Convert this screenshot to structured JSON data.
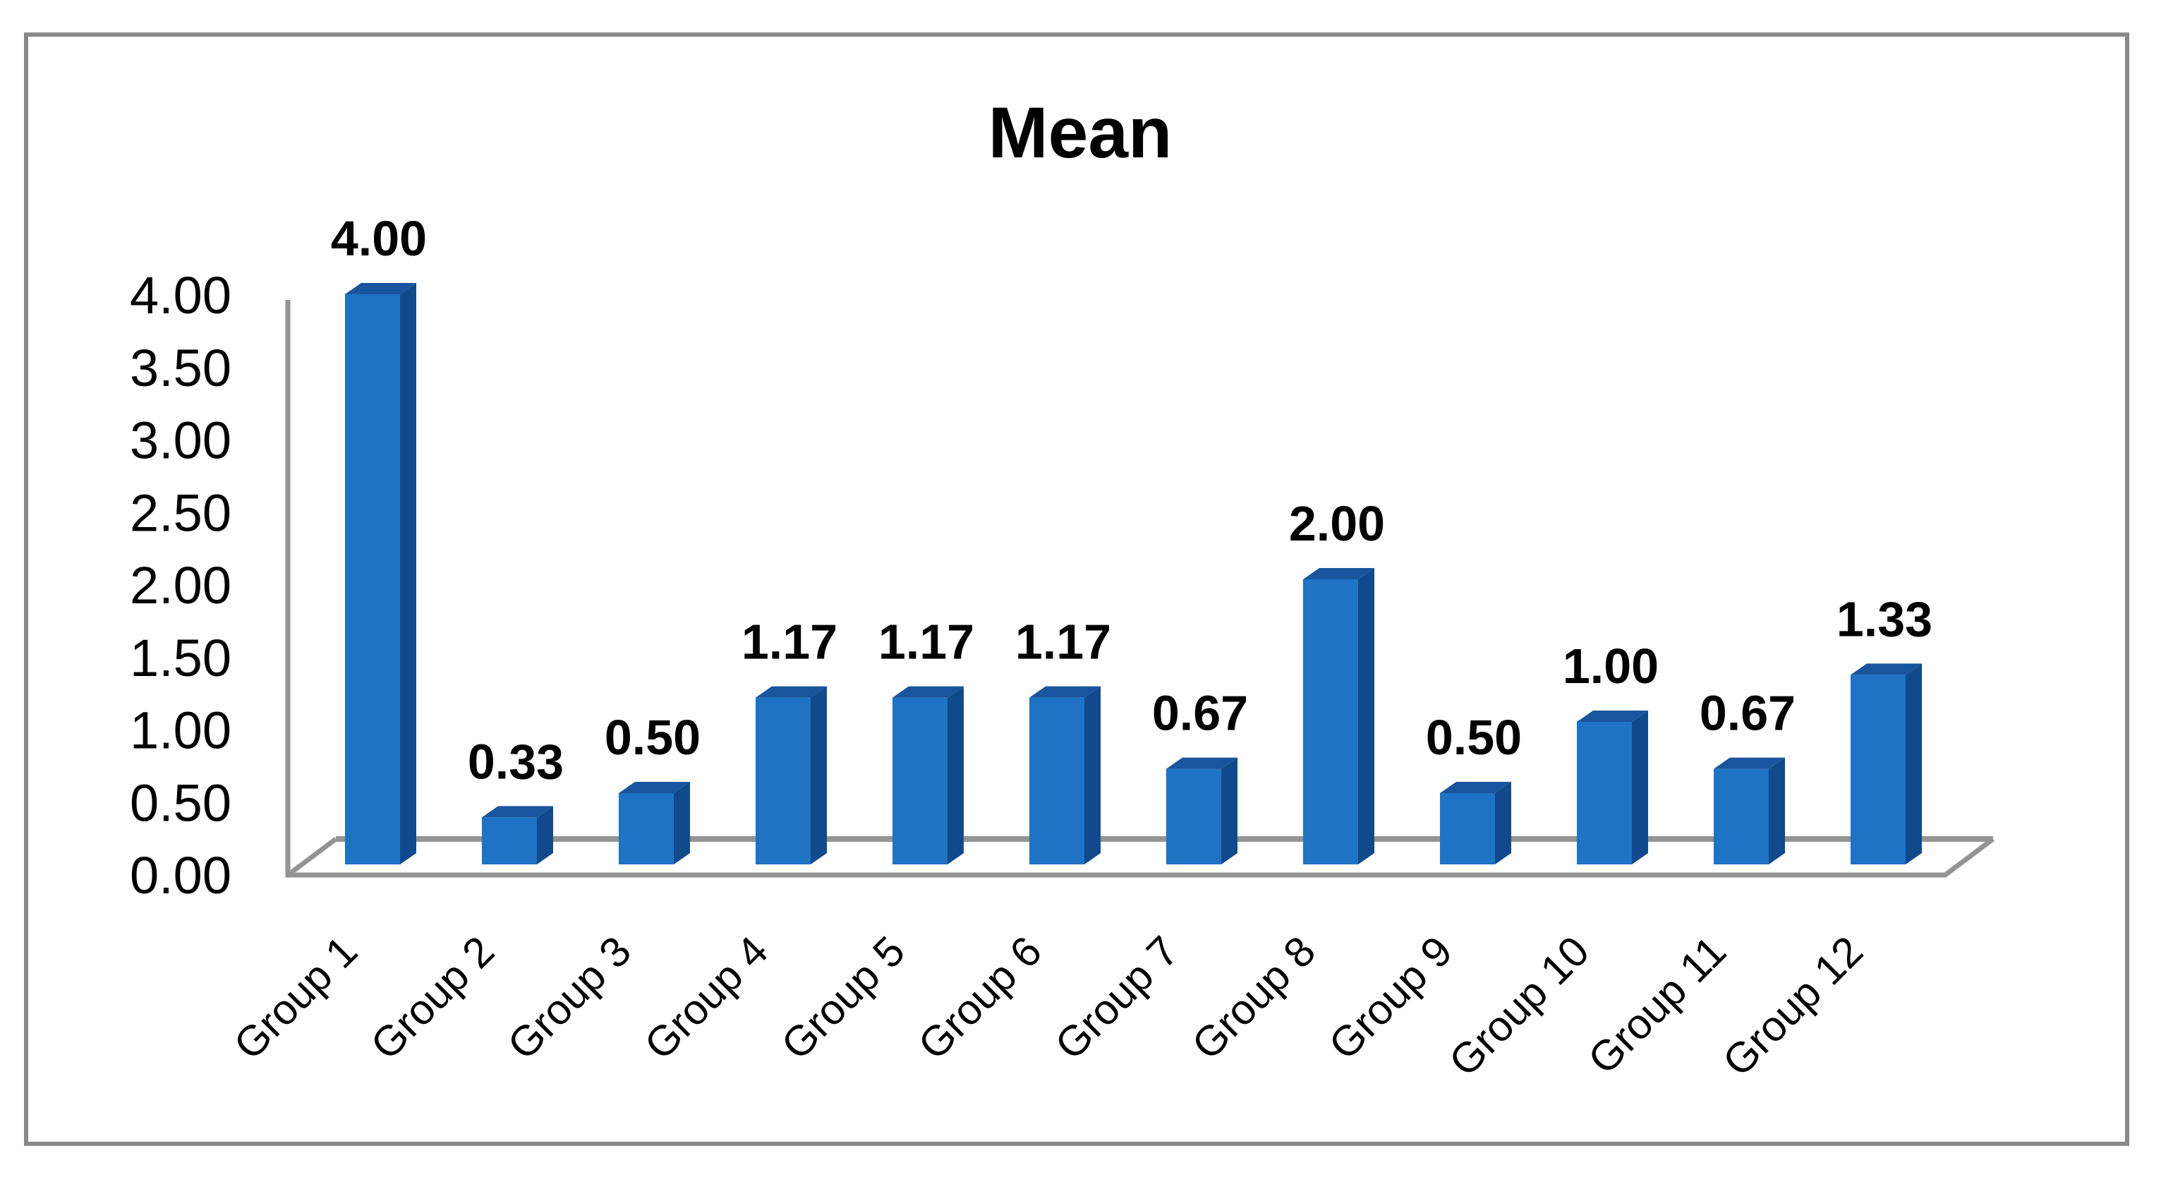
{
  "chart_data": {
    "type": "bar",
    "effect": "3d-column",
    "title": "Mean",
    "categories": [
      "Group 1",
      "Group 2",
      "Group 3",
      "Group 4",
      "Group 5",
      "Group 6",
      "Group 7",
      "Group 8",
      "Group 9",
      "Group 10",
      "Group 11",
      "Group 12"
    ],
    "values": [
      4.0,
      0.33,
      0.5,
      1.17,
      1.17,
      1.17,
      0.67,
      2.0,
      0.5,
      1.0,
      0.67,
      1.33
    ],
    "data_labels": [
      "4.00",
      "0.33",
      "0.50",
      "1.17",
      "1.17",
      "1.17",
      "0.67",
      "2.00",
      "0.50",
      "1.00",
      "0.67",
      "1.33"
    ],
    "y_ticks": [
      "4.00",
      "3.50",
      "3.00",
      "2.50",
      "2.00",
      "1.50",
      "1.00",
      "0.50",
      "0.00"
    ],
    "ylim": [
      0,
      4
    ],
    "y_tick_step": 0.5,
    "grid": false,
    "legend": false,
    "xlabel": "",
    "ylabel": "",
    "colors": {
      "bar_front": "#1E73C4",
      "bar_top": "#18559E",
      "bar_side": "#104A8C",
      "chart_lines": "#949494",
      "outer_border": "#898989",
      "text": "#000000",
      "background": "#FFFFFF"
    }
  }
}
